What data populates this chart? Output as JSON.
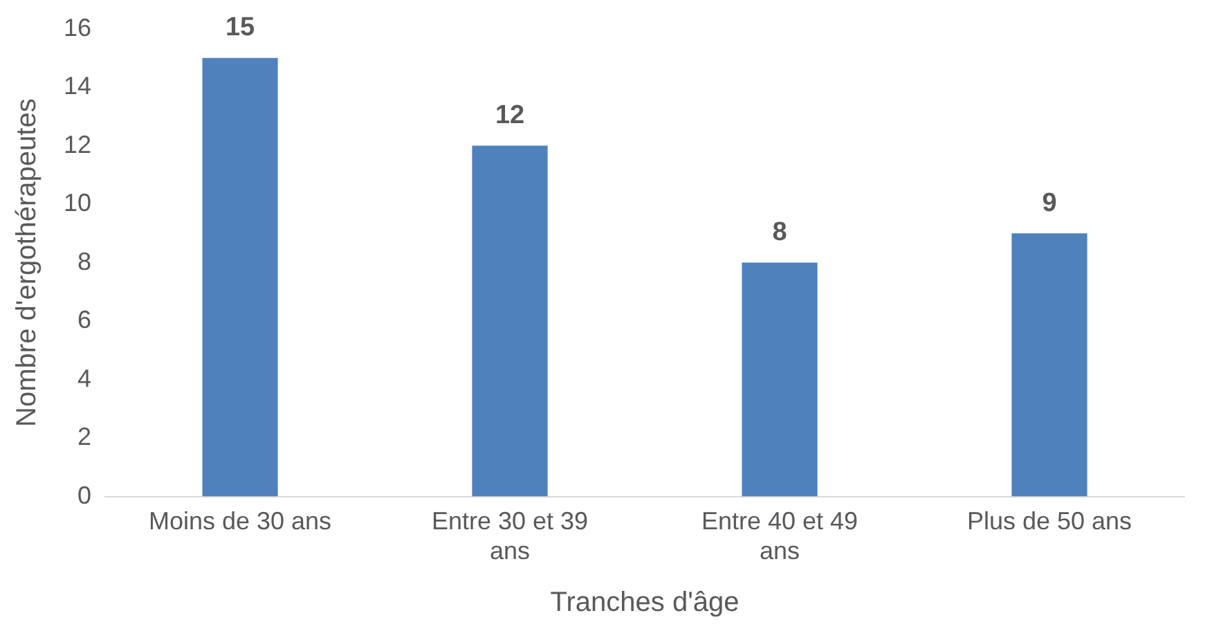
{
  "chart_data": {
    "type": "bar",
    "xlabel": "Tranches d'âge",
    "ylabel": "Nombre d'ergothérapeutes",
    "categories": [
      "Moins de 30 ans",
      "Entre 30 et 39 ans",
      "Entre 40 et 49 ans",
      "Plus de 50 ans"
    ],
    "values": [
      15,
      12,
      8,
      9
    ],
    "color": "#4f81bd",
    "ylim": [
      0,
      16
    ],
    "yticks": [
      0,
      2,
      4,
      6,
      8,
      10,
      12,
      14,
      16
    ],
    "grid": false,
    "data_labels": true,
    "legend": false
  }
}
